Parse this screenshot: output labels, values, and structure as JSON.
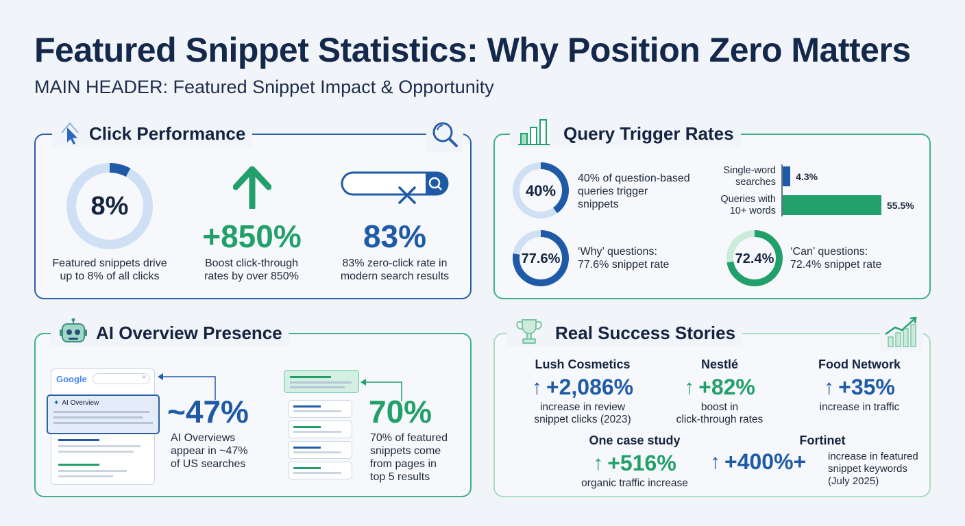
{
  "title": "Featured Snippet Statistics: Why Position Zero Matters",
  "subtitle": "MAIN HEADER: Featured Snippet Impact & Opportunity",
  "colors": {
    "navy": "#14284b",
    "blue": "#1f5aa6",
    "green": "#22a06b",
    "light_blue": "#cfe0f5",
    "light_green": "#cdebdc"
  },
  "click_performance": {
    "heading": "Click Performance",
    "stats": [
      {
        "value": "8%",
        "caption_1": "Featured snippets drive",
        "caption_2": "up to 8% of all clicks",
        "ring_fraction": 0.08
      },
      {
        "value": "+850%",
        "caption_1": "Boost click-through",
        "caption_2": "rates by over 850%"
      },
      {
        "value": "83%",
        "caption_1": "83% zero-click rate in",
        "caption_2": "modern search results"
      }
    ]
  },
  "query_trigger_rates": {
    "heading": "Query Trigger Rates",
    "rings": [
      {
        "value": "40%",
        "fraction": 0.4,
        "caption_1": "40% of question-based",
        "caption_2": "queries trigger",
        "caption_3": "snippets"
      },
      {
        "value": "77.6%",
        "fraction": 0.776,
        "caption_1": "‘Why’ questions:",
        "caption_2": "77.6% snippet rate"
      },
      {
        "value": "72.4%",
        "fraction": 0.724,
        "caption_1": "‘Can’ questions:",
        "caption_2": "72.4% snippet rate"
      }
    ],
    "bars": [
      {
        "label_1": "Single-word",
        "label_2": "searches",
        "value": 4.3,
        "value_label": "4.3%"
      },
      {
        "label_1": "Queries with",
        "label_2": "10+ words",
        "value": 55.5,
        "value_label": "55.5%"
      }
    ]
  },
  "ai_overview": {
    "heading": "AI Overview Presence",
    "mock_logo": "Google",
    "mock_panel_label": "AI Overview",
    "stats": [
      {
        "value": "~47%",
        "caption_1": "AI Overviews",
        "caption_2": "appear in ~47%",
        "caption_3": "of US searches"
      },
      {
        "value": "70%",
        "caption_1": "70% of featured",
        "caption_2": "snippets come",
        "caption_3": "from pages in",
        "caption_4": "top 5 results"
      }
    ]
  },
  "success_stories": {
    "heading": "Real Success Stories",
    "stories": [
      {
        "name": "Lush Cosmetics",
        "value": "+2,086%",
        "caption_1": "increase in review",
        "caption_2": "snippet clicks (2023)"
      },
      {
        "name": "Nestlé",
        "value": "+82%",
        "caption_1": "boost in",
        "caption_2": "click-through rates"
      },
      {
        "name": "Food Network",
        "value": "+35%",
        "caption_1": "increase in traffic"
      },
      {
        "name": "One case study",
        "value": "+516%",
        "caption_1": "organic traffic increase"
      },
      {
        "name": "Fortinet",
        "value": "+400%+",
        "caption_1": "increase in featured",
        "caption_2": "snippet keywords",
        "caption_3": "(July 2025)"
      }
    ]
  }
}
